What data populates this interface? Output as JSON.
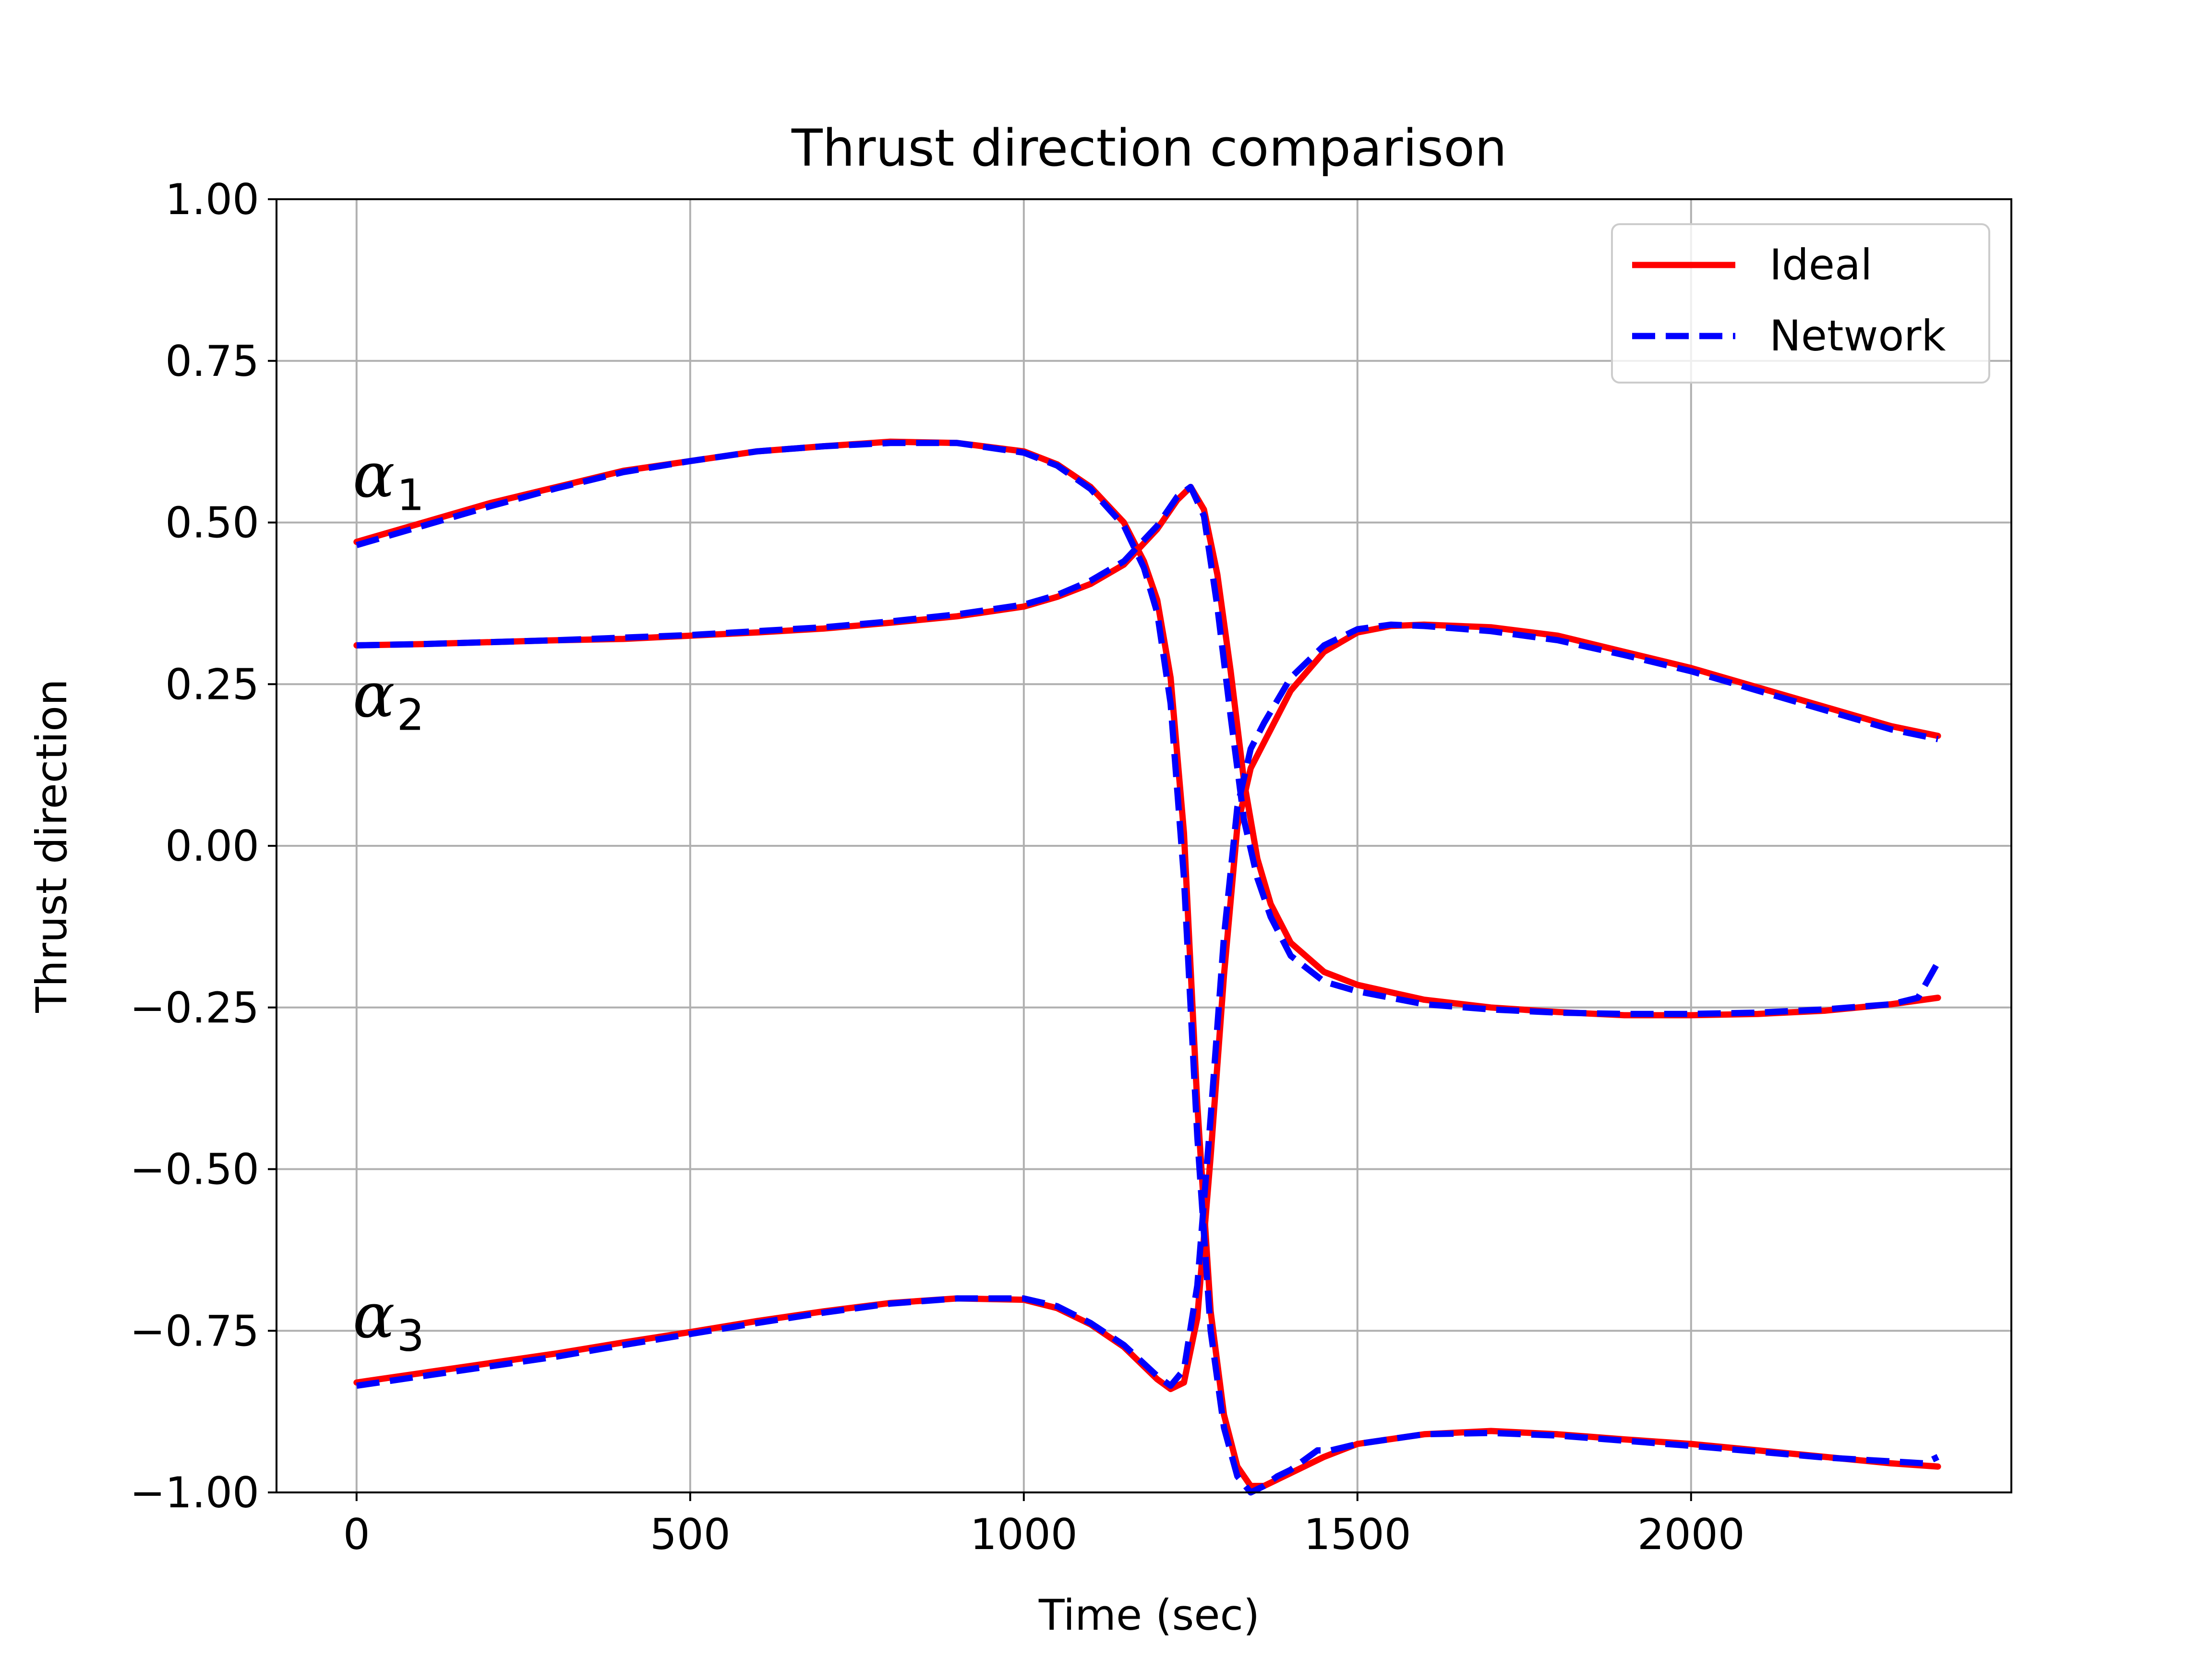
{
  "chart_data": {
    "type": "line",
    "title": "Thrust direction comparison",
    "xlabel": "Time (sec)",
    "ylabel": "Thrust direction",
    "xlim": [
      -120,
      2480
    ],
    "ylim": [
      -1.0,
      1.0
    ],
    "xticks": [
      0,
      500,
      1000,
      1500,
      2000
    ],
    "xtick_labels": [
      "0",
      "500",
      "1000",
      "1500",
      "2000"
    ],
    "yticks": [
      1.0,
      0.75,
      0.5,
      0.25,
      0.0,
      -0.25,
      -0.5,
      -0.75,
      -1.0
    ],
    "ytick_labels": [
      "1.00",
      "0.75",
      "0.50",
      "0.25",
      "0.00",
      "−0.25",
      "−0.50",
      "−0.75",
      "−1.00"
    ],
    "grid": true,
    "legend_position": "top-right",
    "legend": [
      {
        "name": "Ideal",
        "color": "#ff0000",
        "style": "solid"
      },
      {
        "name": "Network",
        "color": "#0000ff",
        "style": "dashed"
      }
    ],
    "annotations": [
      {
        "symbol": "α",
        "sub": "1",
        "x": 0,
        "y": 0.54
      },
      {
        "symbol": "α",
        "sub": "2",
        "x": 0,
        "y": 0.2
      },
      {
        "symbol": "α",
        "sub": "3",
        "x": 0,
        "y": -0.76
      }
    ],
    "series": [
      {
        "name": "Ideal",
        "component": "alpha1",
        "color": "#ff0000",
        "x": [
          0,
          100,
          200,
          300,
          400,
          500,
          600,
          700,
          800,
          900,
          1000,
          1050,
          1100,
          1150,
          1180,
          1200,
          1220,
          1240,
          1260,
          1280,
          1300,
          1320,
          1340,
          1360,
          1380,
          1400,
          1450,
          1500,
          1600,
          1700,
          1800,
          1900,
          2000,
          2100,
          2200,
          2300,
          2370
        ],
        "y": [
          0.47,
          0.5,
          0.53,
          0.555,
          0.58,
          0.595,
          0.61,
          0.618,
          0.625,
          0.623,
          0.61,
          0.59,
          0.555,
          0.5,
          0.44,
          0.38,
          0.26,
          0.02,
          -0.4,
          -0.72,
          -0.88,
          -0.96,
          -0.99,
          -0.99,
          -0.98,
          -0.97,
          -0.945,
          -0.925,
          -0.91,
          -0.905,
          -0.91,
          -0.918,
          -0.925,
          -0.935,
          -0.945,
          -0.955,
          -0.96
        ]
      },
      {
        "name": "Ideal",
        "component": "alpha2",
        "color": "#ff0000",
        "x": [
          0,
          100,
          200,
          300,
          400,
          500,
          600,
          700,
          800,
          900,
          1000,
          1050,
          1100,
          1150,
          1200,
          1230,
          1250,
          1270,
          1290,
          1310,
          1330,
          1350,
          1370,
          1400,
          1450,
          1500,
          1600,
          1700,
          1800,
          1900,
          2000,
          2100,
          2200,
          2300,
          2370
        ],
        "y": [
          0.31,
          0.312,
          0.315,
          0.318,
          0.32,
          0.325,
          0.33,
          0.336,
          0.345,
          0.355,
          0.37,
          0.385,
          0.405,
          0.435,
          0.49,
          0.535,
          0.555,
          0.52,
          0.42,
          0.27,
          0.1,
          -0.02,
          -0.09,
          -0.15,
          -0.195,
          -0.215,
          -0.238,
          -0.25,
          -0.257,
          -0.262,
          -0.262,
          -0.26,
          -0.255,
          -0.245,
          -0.235
        ]
      },
      {
        "name": "Ideal",
        "component": "alpha3",
        "color": "#ff0000",
        "x": [
          0,
          100,
          200,
          300,
          400,
          500,
          600,
          700,
          800,
          900,
          1000,
          1050,
          1100,
          1150,
          1200,
          1220,
          1240,
          1260,
          1280,
          1300,
          1320,
          1340,
          1360,
          1380,
          1400,
          1450,
          1500,
          1550,
          1600,
          1700,
          1800,
          1900,
          2000,
          2100,
          2200,
          2300,
          2370
        ],
        "y": [
          -0.83,
          -0.815,
          -0.8,
          -0.785,
          -0.768,
          -0.752,
          -0.735,
          -0.72,
          -0.707,
          -0.7,
          -0.702,
          -0.715,
          -0.74,
          -0.775,
          -0.825,
          -0.84,
          -0.83,
          -0.73,
          -0.48,
          -0.2,
          0.03,
          0.12,
          0.16,
          0.2,
          0.24,
          0.3,
          0.33,
          0.34,
          0.342,
          0.338,
          0.325,
          0.3,
          0.275,
          0.245,
          0.215,
          0.185,
          0.17
        ]
      },
      {
        "name": "Network",
        "component": "alpha1",
        "color": "#0000ff",
        "x": [
          0,
          100,
          200,
          300,
          400,
          500,
          600,
          700,
          800,
          900,
          1000,
          1050,
          1100,
          1150,
          1180,
          1200,
          1220,
          1240,
          1260,
          1280,
          1300,
          1320,
          1340,
          1360,
          1380,
          1400,
          1440,
          1460,
          1500,
          1600,
          1700,
          1800,
          1900,
          2000,
          2100,
          2200,
          2300,
          2350,
          2370
        ],
        "y": [
          0.465,
          0.495,
          0.525,
          0.553,
          0.578,
          0.595,
          0.61,
          0.618,
          0.623,
          0.623,
          0.608,
          0.588,
          0.552,
          0.495,
          0.43,
          0.36,
          0.22,
          -0.05,
          -0.45,
          -0.75,
          -0.9,
          -0.975,
          -1.0,
          -0.99,
          -0.975,
          -0.965,
          -0.935,
          -0.935,
          -0.925,
          -0.91,
          -0.908,
          -0.912,
          -0.92,
          -0.928,
          -0.937,
          -0.946,
          -0.952,
          -0.955,
          -0.945
        ]
      },
      {
        "name": "Network",
        "component": "alpha2",
        "color": "#0000ff",
        "x": [
          0,
          100,
          200,
          300,
          400,
          500,
          600,
          700,
          800,
          900,
          1000,
          1050,
          1100,
          1150,
          1200,
          1230,
          1250,
          1270,
          1290,
          1310,
          1330,
          1350,
          1370,
          1400,
          1450,
          1500,
          1600,
          1700,
          1800,
          1900,
          2000,
          2100,
          2200,
          2300,
          2340,
          2370
        ],
        "y": [
          0.31,
          0.312,
          0.315,
          0.318,
          0.322,
          0.326,
          0.332,
          0.338,
          0.347,
          0.358,
          0.373,
          0.388,
          0.41,
          0.44,
          0.495,
          0.54,
          0.555,
          0.51,
          0.37,
          0.2,
          0.04,
          -0.05,
          -0.11,
          -0.17,
          -0.21,
          -0.225,
          -0.245,
          -0.253,
          -0.258,
          -0.26,
          -0.26,
          -0.258,
          -0.253,
          -0.245,
          -0.235,
          -0.18
        ]
      },
      {
        "name": "Network",
        "component": "alpha3",
        "color": "#0000ff",
        "x": [
          0,
          100,
          200,
          300,
          400,
          500,
          600,
          700,
          800,
          900,
          1000,
          1050,
          1100,
          1150,
          1200,
          1220,
          1240,
          1260,
          1280,
          1300,
          1320,
          1340,
          1360,
          1380,
          1400,
          1450,
          1500,
          1550,
          1600,
          1700,
          1800,
          1900,
          2000,
          2100,
          2200,
          2300,
          2370
        ],
        "y": [
          -0.835,
          -0.82,
          -0.805,
          -0.79,
          -0.772,
          -0.755,
          -0.738,
          -0.722,
          -0.708,
          -0.7,
          -0.7,
          -0.712,
          -0.738,
          -0.772,
          -0.82,
          -0.835,
          -0.81,
          -0.68,
          -0.42,
          -0.14,
          0.06,
          0.15,
          0.19,
          0.225,
          0.26,
          0.31,
          0.335,
          0.342,
          0.34,
          0.332,
          0.318,
          0.295,
          0.27,
          0.24,
          0.21,
          0.18,
          0.165
        ]
      }
    ]
  }
}
